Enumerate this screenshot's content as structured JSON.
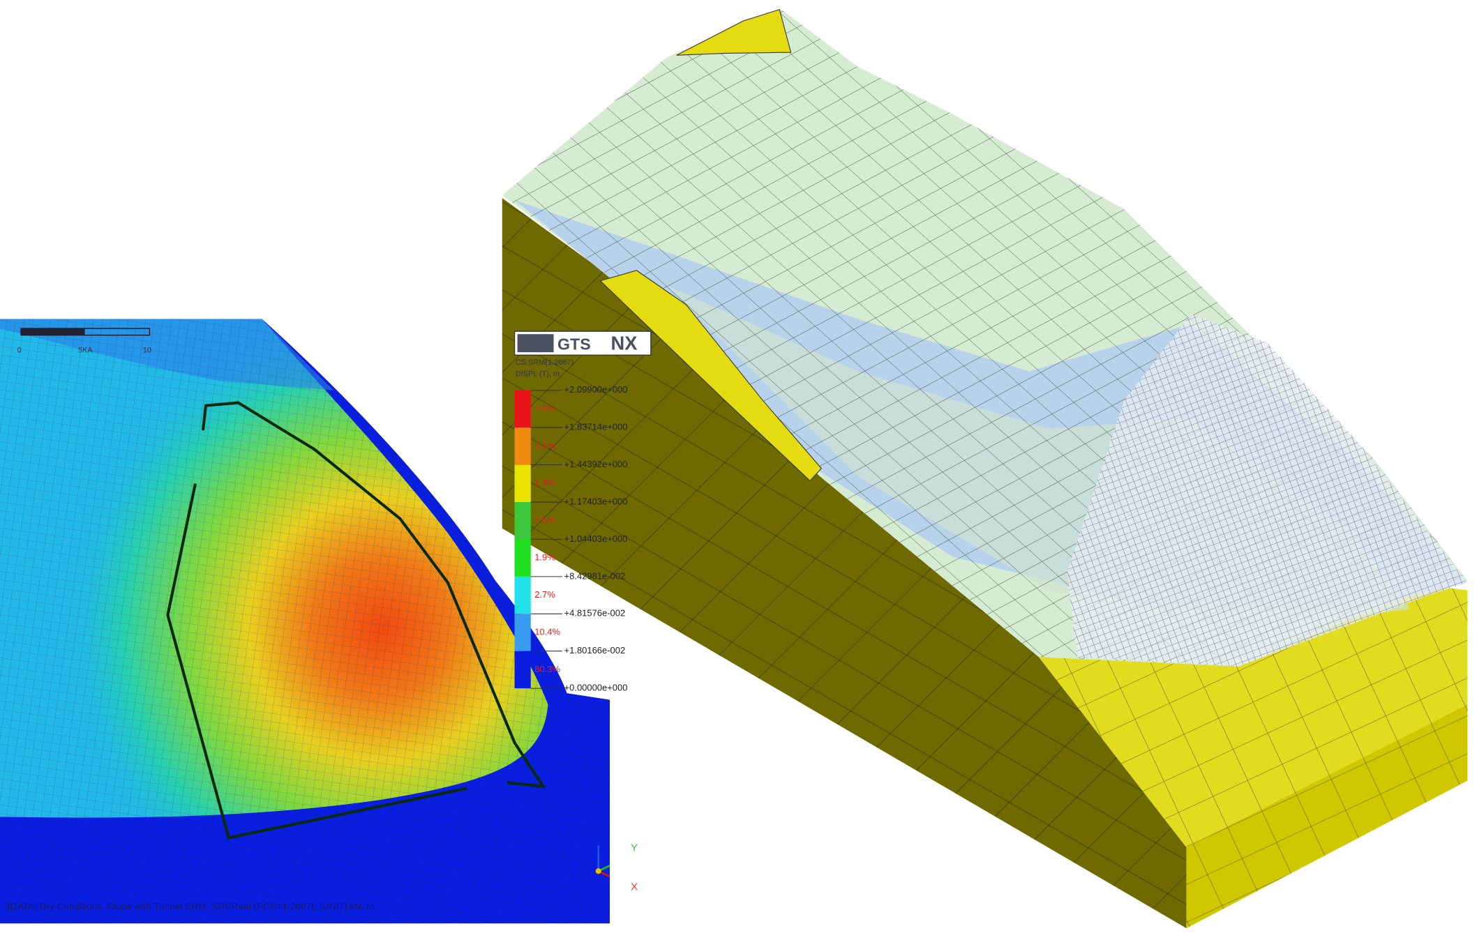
{
  "logo": {
    "left": "GTS",
    "right": "NX"
  },
  "legend": {
    "header": [
      "CS:SRM(1.2667)",
      "DISPL (T), m"
    ],
    "labels": [
      "+2.09900e+000",
      "+1.83714e+000",
      "+1.44392e+000",
      "+1.17403e+000",
      "+1.04403e+000",
      "+8.42981e-002",
      "+4.81576e-002",
      "+1.80166e-002",
      "+0.00000e+000"
    ],
    "percentages": [
      "1.0%",
      "1.1%",
      "1.3%",
      "1.5%",
      "1.9%",
      "2.7%",
      "10.4%",
      "80.3%"
    ],
    "colors": [
      "#e8141a",
      "#f08a10",
      "#e8e400",
      "#3cc83c",
      "#1ee01e",
      "#20e0e8",
      "#3a9cf0",
      "#0a1ee0"
    ]
  },
  "scale_bar": [
    "0",
    "5KA",
    "10"
  ],
  "axis": {
    "x": "X",
    "y": "Y"
  },
  "status": "[DATA] Dry Conditions, Slope with Tunnel SRM, SRCReel (FOS=1.2667), [UNIT] kN, m"
}
